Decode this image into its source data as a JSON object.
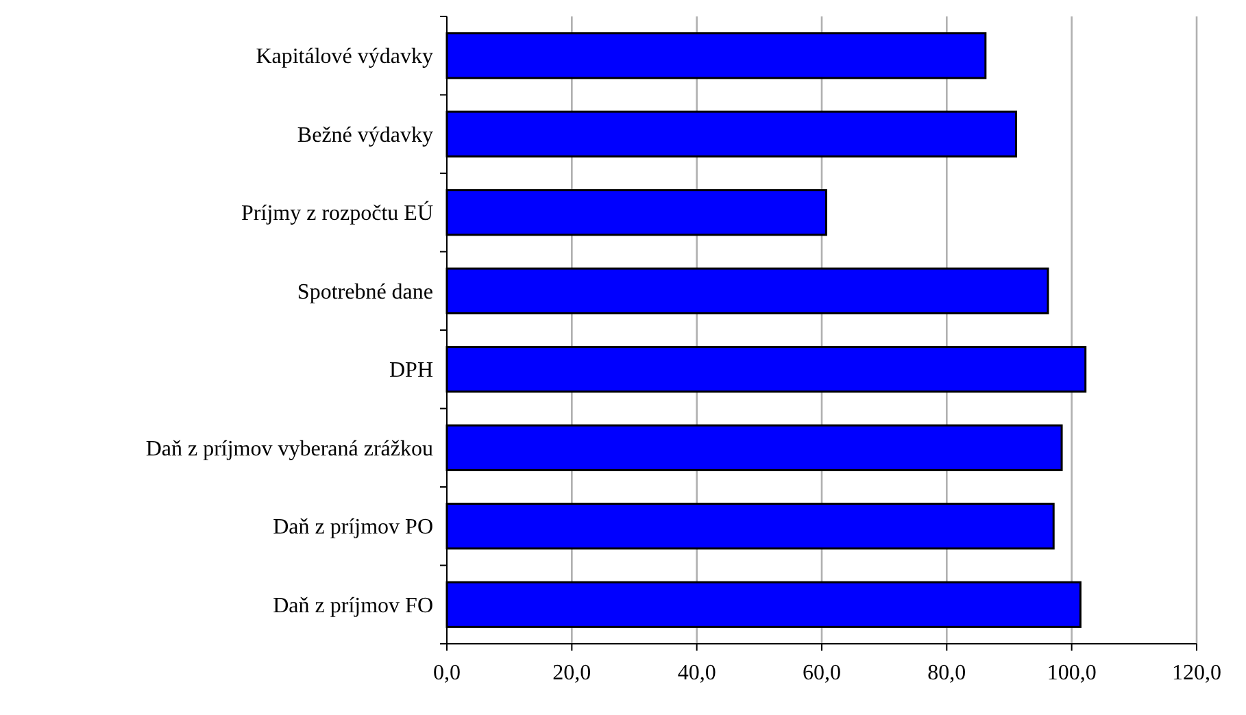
{
  "chart_data": {
    "type": "bar",
    "orientation": "horizontal",
    "categories": [
      "Kapitálové výdavky",
      "Bežné výdavky",
      "Príjmy z rozpočtu EÚ",
      "Spotrebné dane",
      "DPH",
      "Daň z príjmov vyberaná zrážkou",
      "Daň z príjmov PO",
      "Daň z príjmov FO"
    ],
    "values": [
      86.2,
      91.1,
      60.7,
      96.2,
      102.2,
      98.4,
      97.1,
      101.4
    ],
    "color": "#0000ff",
    "xlim": [
      0,
      120
    ],
    "xticks": [
      {
        "value": 0,
        "label": "0,0"
      },
      {
        "value": 20,
        "label": "20,0"
      },
      {
        "value": 40,
        "label": "40,0"
      },
      {
        "value": 60,
        "label": "60,0"
      },
      {
        "value": 80,
        "label": "80,0"
      },
      {
        "value": 100,
        "label": "100,0"
      },
      {
        "value": 120,
        "label": "120,0"
      }
    ],
    "grid": "x"
  }
}
